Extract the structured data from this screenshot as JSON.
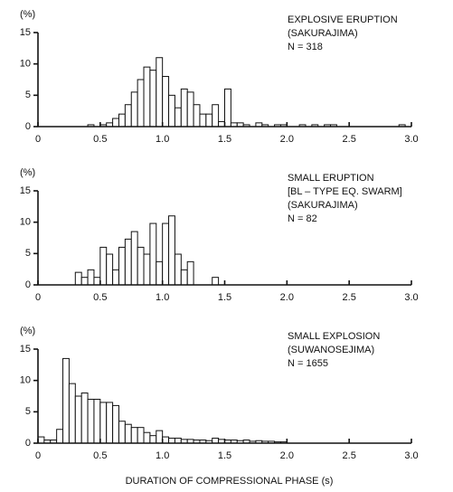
{
  "chart_data": [
    {
      "type": "histogram",
      "y_label": "(%)",
      "annotation": [
        "EXPLOSIVE ERUPTION",
        "(SAKURAJIMA)",
        "N = 318"
      ],
      "bins": [
        0.4,
        0.45,
        0.5,
        0.55,
        0.6,
        0.65,
        0.7,
        0.75,
        0.8,
        0.85,
        0.9,
        0.95,
        1,
        1.05,
        1.1,
        1.15,
        1.2,
        1.25,
        1.3,
        1.35,
        1.4,
        1.45,
        1.5,
        1.55,
        1.6,
        1.65,
        1.7,
        1.75,
        1.8,
        1.85,
        1.9,
        1.95,
        2,
        2.05,
        2.1,
        2.15,
        2.2,
        2.25,
        2.3,
        2.35,
        2.4,
        2.45,
        2.5,
        2.55,
        2.6,
        2.65,
        2.7,
        2.75,
        2.8,
        2.85,
        2.9,
        2.95,
        3
      ],
      "values": [
        0.3,
        0,
        0.3,
        0.6,
        1.3,
        2,
        3.5,
        5.5,
        7.5,
        9.5,
        9,
        11,
        8,
        5,
        3,
        6,
        5.5,
        3.5,
        2,
        2,
        3.5,
        0.8,
        6,
        0.6,
        0.6,
        0.3,
        0,
        0.6,
        0.3,
        0,
        0.3,
        0.3,
        0,
        0,
        0.3,
        0,
        0.3,
        0,
        0.3,
        0.3,
        0,
        0,
        0,
        0,
        0,
        0,
        0,
        0,
        0,
        0,
        0.3,
        0
      ],
      "color": "#ffffff",
      "xlim": [
        0,
        3
      ],
      "xticks": [
        0,
        0.5,
        {
          "value": 1,
          "label": "1.0"
        },
        1.5,
        {
          "value": 2,
          "label": "2.0"
        },
        2.5,
        {
          "value": 3,
          "label": "3.0"
        }
      ],
      "ylim": [
        0,
        15
      ],
      "yticks": [
        0,
        5,
        10,
        15
      ],
      "grid": false
    },
    {
      "type": "histogram",
      "y_label": "(%)",
      "annotation": [
        "SMALL ERUPTION",
        "[BL – TYPE EQ. SWARM]",
        "(SAKURAJIMA)",
        "N = 82"
      ],
      "bins": [
        0.3,
        0.35,
        0.4,
        0.45,
        0.5,
        0.55,
        0.6,
        0.65,
        0.7,
        0.75,
        0.8,
        0.85,
        0.9,
        0.95,
        1,
        1.05,
        1.1,
        1.15,
        1.2,
        1.25,
        1.3,
        1.35,
        1.4,
        1.45
      ],
      "values": [
        2,
        1.2,
        2.4,
        1.2,
        6,
        4.9,
        2.4,
        6,
        7.3,
        8.5,
        6,
        4.9,
        9.8,
        3.7,
        9.8,
        11,
        4.9,
        2.4,
        3.7,
        0,
        0,
        0,
        1.2
      ],
      "color": "#ffffff",
      "xlim": [
        0,
        3
      ],
      "xticks": [
        0,
        0.5,
        {
          "value": 1,
          "label": "1.0"
        },
        1.5,
        {
          "value": 2,
          "label": "2.0"
        },
        2.5,
        {
          "value": 3,
          "label": "3.0"
        }
      ],
      "ylim": [
        0,
        15
      ],
      "yticks": [
        0,
        5,
        10,
        15
      ],
      "grid": false
    },
    {
      "type": "histogram",
      "y_label": "(%)",
      "annotation": [
        "SMALL EXPLOSION",
        "(SUWANOSEJIMA)",
        "N = 1655"
      ],
      "x_label": "DURATION OF COMPRESSIONAL PHASE (s)",
      "bins": [
        0,
        0.05,
        0.1,
        0.15,
        0.2,
        0.25,
        0.3,
        0.35,
        0.4,
        0.45,
        0.5,
        0.55,
        0.6,
        0.65,
        0.7,
        0.75,
        0.8,
        0.85,
        0.9,
        0.95,
        1,
        1.05,
        1.1,
        1.15,
        1.2,
        1.25,
        1.3,
        1.35,
        1.4,
        1.45,
        1.5,
        1.55,
        1.6,
        1.65,
        1.7,
        1.75,
        1.8,
        1.85,
        1.9,
        1.95,
        2
      ],
      "values": [
        1,
        0.5,
        0.5,
        2.2,
        13.5,
        9.5,
        7.5,
        8,
        7,
        7,
        6.5,
        6.5,
        6,
        3.5,
        3,
        2.5,
        2.5,
        1.7,
        1.2,
        2,
        1,
        0.8,
        0.8,
        0.6,
        0.6,
        0.5,
        0.5,
        0.4,
        0.8,
        0.6,
        0.5,
        0.5,
        0.4,
        0.5,
        0.3,
        0.4,
        0.3,
        0.3,
        0.2,
        0.2
      ],
      "color": "#ffffff",
      "xlim": [
        0,
        3
      ],
      "xticks": [
        0,
        0.5,
        {
          "value": 1,
          "label": "1.0"
        },
        1.5,
        {
          "value": 2,
          "label": "2.0"
        },
        2.5,
        {
          "value": 3,
          "label": "3.0"
        }
      ],
      "ylim": [
        0,
        15
      ],
      "yticks": [
        0,
        5,
        10,
        15
      ],
      "grid": false
    }
  ]
}
